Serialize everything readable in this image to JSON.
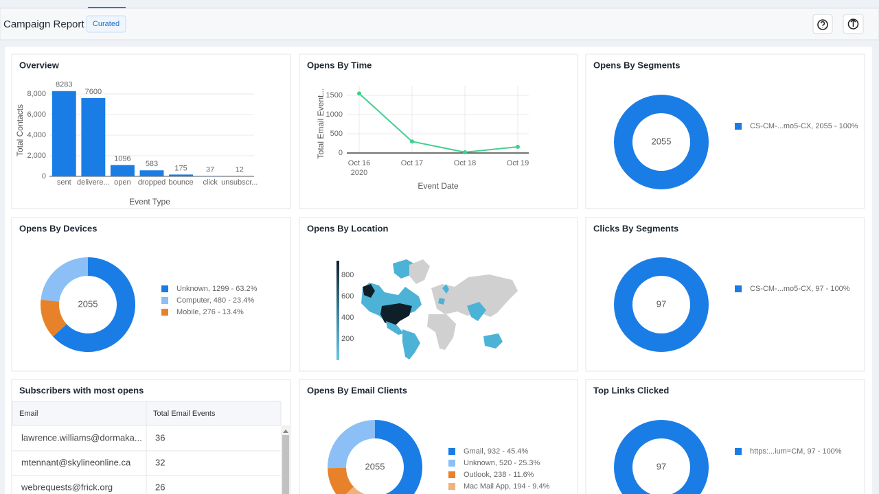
{
  "header": {
    "title": "Campaign Report",
    "badge": "Curated"
  },
  "chart_data": [
    {
      "type": "bar",
      "title": "Overview",
      "categories": [
        "sent",
        "delivere...",
        "open",
        "dropped",
        "bounce",
        "click",
        "unsubscr..."
      ],
      "values": [
        8283,
        7600,
        1096,
        583,
        175,
        37,
        12
      ],
      "color": "#1a7de6",
      "xlabel": "Event Type",
      "ylabel": "Total Contacts",
      "ylim": [
        0,
        9000
      ],
      "yticks": [
        0,
        {
          "value": 2000,
          "label": "2,000"
        },
        {
          "value": 4000,
          "label": "4,000"
        },
        {
          "value": 6000,
          "label": "6,000"
        },
        {
          "value": 8000,
          "label": "8,000"
        }
      ],
      "grid": true
    },
    {
      "type": "line",
      "title": "Opens By Time",
      "categories": [
        "Oct 16",
        "Oct 17",
        "Oct 18",
        "Oct 19"
      ],
      "year_label": "2020",
      "values": [
        1550,
        300,
        20,
        160
      ],
      "color": "#3fd08f",
      "xlabel": "Event Date",
      "ylabel": "Total Email Event...",
      "ylim": [
        0,
        1750
      ],
      "yticks": [
        0,
        500,
        1000,
        1500
      ],
      "grid": true
    },
    {
      "type": "pie",
      "title": "Opens By Segments",
      "total": 2055,
      "values": [
        2055
      ],
      "colors": [
        "#1a7de6"
      ],
      "legend_labels": [
        "CS-CM-...mo5-CX,  2055 - 100%"
      ]
    },
    {
      "type": "pie",
      "title": "Opens By Devices",
      "total": 2055,
      "values": [
        1299,
        480,
        276
      ],
      "colors": [
        "#1a7de6",
        "#8bbff5",
        "#e8822a"
      ],
      "legend_labels": [
        "Unknown,  1299 - 63.2%",
        "Computer,  480 - 23.4%",
        "Mobile,  276 - 13.4%"
      ]
    },
    {
      "type": "map",
      "title": "Opens By Location",
      "colorbar_lim": [
        0,
        935
      ],
      "colorbar_ticks": [
        200,
        400,
        600,
        800
      ]
    },
    {
      "type": "pie",
      "title": "Clicks By Segments",
      "total": 97,
      "values": [
        97
      ],
      "colors": [
        "#1a7de6"
      ],
      "legend_labels": [
        "CS-CM-...mo5-CX,  97 - 100%"
      ]
    },
    {
      "type": "pie",
      "title": "Opens By Email Clients",
      "total": 2055,
      "values": [
        932,
        520,
        238,
        194
      ],
      "colors": [
        "#1a7de6",
        "#8bbff5",
        "#e8822a",
        "#f0b27a"
      ],
      "legend_labels": [
        "Gmail,  932 - 45.4%",
        "Unknown,  520 - 25.3%",
        "Outlook,  238 - 11.6%",
        "Mac Mail App,  194 - 9.4%"
      ]
    },
    {
      "type": "pie",
      "title": "Top Links Clicked",
      "total": 97,
      "values": [
        97
      ],
      "colors": [
        "#1a7de6"
      ],
      "legend_labels": [
        "https:...ium=CM,  97 - 100%"
      ]
    }
  ],
  "table": {
    "title": "Subscribers with most opens",
    "columns": [
      "Email",
      "Total Email Events"
    ],
    "rows": [
      [
        "lawrence.williams@dormaka...",
        36
      ],
      [
        "mtennant@skylineonline.ca",
        32
      ],
      [
        "webrequests@frick.org",
        26
      ]
    ]
  }
}
